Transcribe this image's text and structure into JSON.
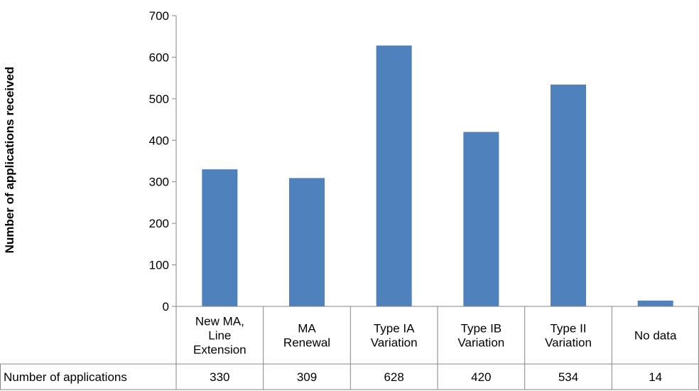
{
  "chart_data": {
    "type": "bar",
    "title": "",
    "xlabel": "",
    "ylabel": "Number of applications received",
    "ylim": [
      0,
      700
    ],
    "yticks": [
      0,
      100,
      200,
      300,
      400,
      500,
      600,
      700
    ],
    "categories": [
      [
        "New MA,",
        "Line",
        "Extension"
      ],
      [
        "MA",
        "Renewal"
      ],
      [
        "Type IA",
        "Variation"
      ],
      [
        "Type IB",
        "Variation"
      ],
      [
        "Type II",
        "Variation"
      ],
      [
        "No data"
      ]
    ],
    "series": [
      {
        "name": "Number of applications",
        "values": [
          330,
          309,
          628,
          420,
          534,
          14
        ],
        "color": "#4f81bd"
      }
    ],
    "grid": false,
    "legend": "none",
    "data_table": {
      "row_header": "Number of applications"
    }
  }
}
